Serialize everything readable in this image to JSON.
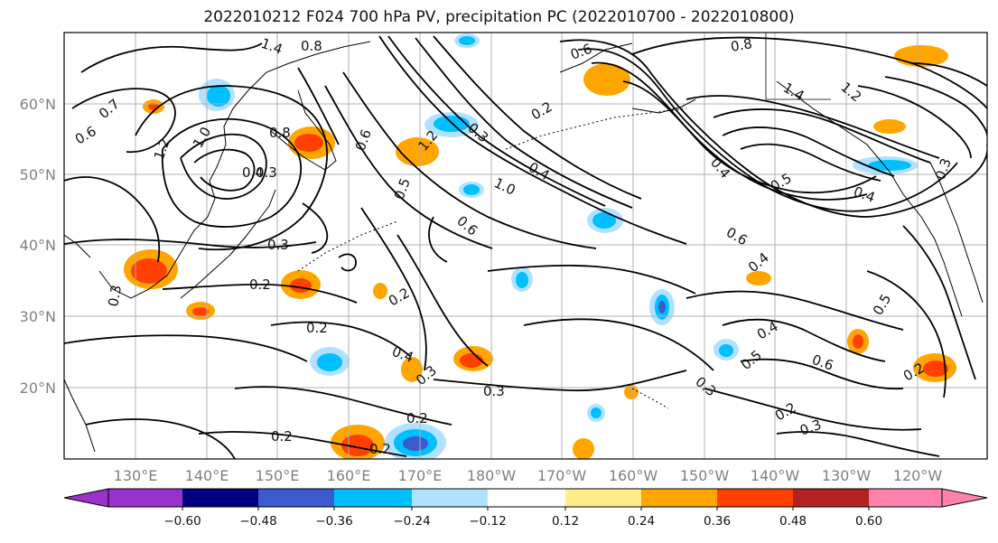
{
  "title": "2022010212 F024 700 hPa PV, precipitation PC (2022010700 - 2022010800)",
  "map": {
    "lon_range": [
      "120°E",
      "~130°W"
    ],
    "lat_range": [
      "10°N",
      "70°N"
    ]
  },
  "axes": {
    "lat_labels": [
      "60°N",
      "50°N",
      "40°N",
      "30°N",
      "20°N"
    ],
    "lon_labels": [
      "130°E",
      "140°E",
      "150°E",
      "160°E",
      "170°E",
      "180°W",
      "170°W",
      "160°W",
      "150°W",
      "140°W",
      "130°W",
      "120°W"
    ],
    "label_color": "#808080",
    "grid": true
  },
  "contour_labels": [
    "1.4",
    "0.8",
    "0.6",
    "0.7",
    "1.2",
    "1.0",
    "0.8",
    "0.4",
    "0.3",
    "0.3",
    "0.6",
    "1.2",
    "0.3",
    "1.0",
    "0.4",
    "0.5",
    "0.6",
    "0.3",
    "0.2",
    "0.2",
    "0.2",
    "0.4",
    "0.3",
    "0.3",
    "0.2",
    "0.2",
    "0.2",
    "0.8",
    "0.2",
    "1.4",
    "1.2",
    "0.6",
    "0.4",
    "0.5",
    "0.4",
    "0.6",
    "0.4",
    "0.5",
    "0.4",
    "0.5",
    "0.6",
    "0.3",
    "0.2",
    "0.3",
    "0.2",
    "0.3"
  ],
  "colorbar": {
    "ticks": [
      "−0.60",
      "−0.48",
      "−0.36",
      "−0.24",
      "−0.12",
      "0.12",
      "0.24",
      "0.36",
      "0.48",
      "0.60"
    ],
    "colors": [
      "#9932CC",
      "#000080",
      "#3A5ACD",
      "#00BFFF",
      "#B0E2FF",
      "#FFFFFF",
      "#FFEC8B",
      "#FFA500",
      "#FF4000",
      "#B22222",
      "#FF82AB"
    ]
  }
}
